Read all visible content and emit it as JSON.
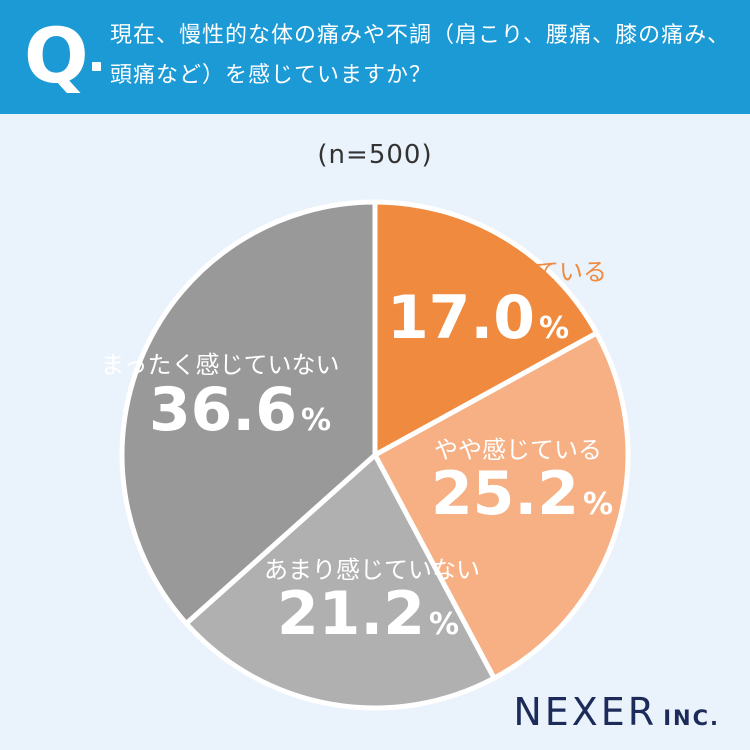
{
  "header": {
    "q_letter": "Q",
    "question": "現在、慢性的な体の痛みや不調（肩こり、腰痛、膝の痛み、頭痛など）を感じていますか？"
  },
  "sample_label": "(n=500)",
  "logo": {
    "main": "NEXER",
    "sub": "INC."
  },
  "colors": {
    "header_bg": "#1b9ad6",
    "page_bg": "#eaf2fb",
    "slice_1": "#f08a3e",
    "slice_2": "#f6b083",
    "slice_3": "#b0b0b0",
    "slice_4": "#999999"
  },
  "chart_data": {
    "type": "pie",
    "title": "",
    "slices": [
      {
        "label": "とても感じている",
        "value": 17.0,
        "display": "17.0",
        "unit": "%"
      },
      {
        "label": "やや感じている",
        "value": 25.2,
        "display": "25.2",
        "unit": "%"
      },
      {
        "label": "あまり感じていない",
        "value": 21.2,
        "display": "21.2",
        "unit": "%"
      },
      {
        "label": "まったく感じていない",
        "value": 36.6,
        "display": "36.6",
        "unit": "%"
      }
    ]
  }
}
